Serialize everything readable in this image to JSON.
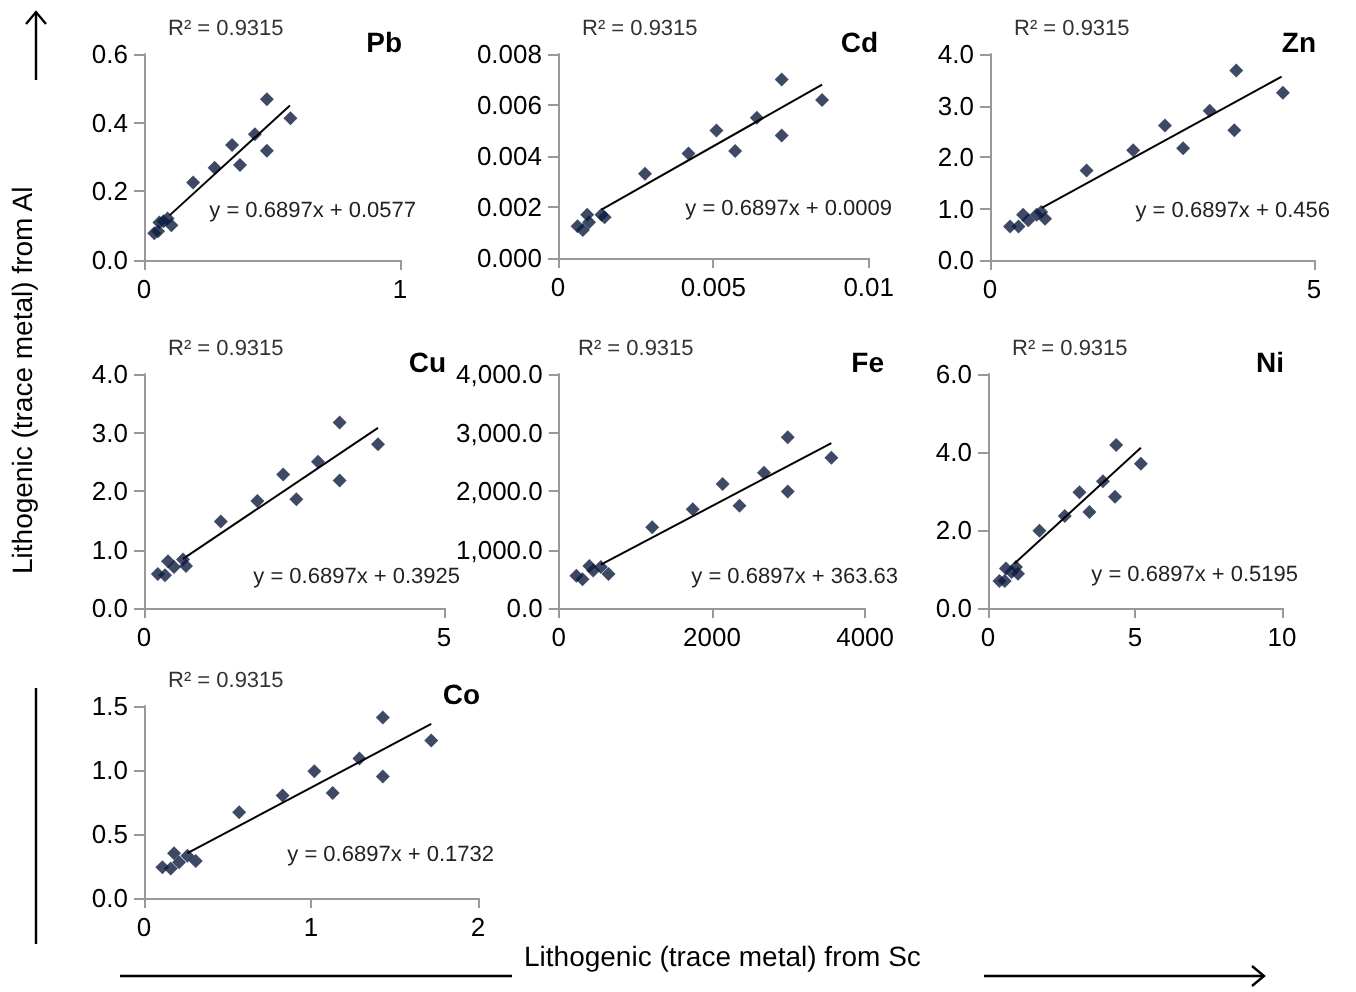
{
  "chart_data": [
    {
      "type": "scatter",
      "title": "Pb",
      "ylabel": "Lithogenic (trace metal) from Al",
      "xlim": [
        0,
        1
      ],
      "xticks": [
        0,
        1
      ],
      "ylim": [
        0,
        0.6
      ],
      "yticks": [
        {
          "value": 0,
          "label": "0.0"
        },
        0.2,
        0.4,
        0.6
      ],
      "annotations": [
        "R² = 0.9315",
        "y = 0.6897x + 0.0577"
      ],
      "series": [
        {
          "marker": "diamond",
          "color": "#0d1b3e",
          "x": [
            0.04,
            0.055,
            0.06,
            0.076,
            0.092,
            0.107,
            0.192,
            0.276,
            0.344,
            0.375,
            0.433,
            0.48,
            0.48,
            0.572
          ],
          "values": [
            0.078,
            0.084,
            0.109,
            0.113,
            0.121,
            0.101,
            0.226,
            0.269,
            0.335,
            0.277,
            0.366,
            0.468,
            0.318,
            0.413
          ]
        },
        {
          "type": "line",
          "marker": "none",
          "color": "#000000",
          "x": [
            0.1,
            0.57
          ],
          "values": [
            0.13,
            0.45
          ]
        }
      ]
    },
    {
      "type": "scatter",
      "title": "Cd",
      "xlim": [
        0,
        0.01
      ],
      "xticks": [
        0,
        0.005,
        0.01
      ],
      "ylim": [
        0,
        0.008
      ],
      "yticks": [
        {
          "value": 0,
          "label": "0.000"
        },
        {
          "value": 0.002,
          "label": "0.002"
        },
        {
          "value": 0.004,
          "label": "0.004"
        },
        {
          "value": 0.006,
          "label": "0.006"
        },
        {
          "value": 0.008,
          "label": "0.008"
        }
      ],
      "annotations": [
        "R² = 0.9315",
        "y = 0.6897x + 0.0009"
      ],
      "series": [
        {
          "marker": "diamond",
          "color": "#0d1b3e",
          "x": [
            0.00063,
            0.0008,
            0.00094,
            0.001,
            0.0014,
            0.0015,
            0.0028,
            0.0042,
            0.0051,
            0.0057,
            0.0064,
            0.0072,
            0.0072,
            0.0085
          ],
          "values": [
            0.00125,
            0.0011,
            0.0017,
            0.0014,
            0.0017,
            0.0016,
            0.0033,
            0.0041,
            0.005,
            0.0042,
            0.0055,
            0.007,
            0.0048,
            0.0062
          ]
        },
        {
          "type": "line",
          "marker": "none",
          "color": "#000000",
          "x": [
            0.0014,
            0.0085
          ],
          "values": [
            0.0019,
            0.0068
          ]
        }
      ]
    },
    {
      "type": "scatter",
      "title": "Zn",
      "xlim": [
        0,
        5
      ],
      "xticks": [
        0,
        5
      ],
      "ylim": [
        0,
        4
      ],
      "yticks": [
        {
          "value": 0,
          "label": "0.0"
        },
        {
          "value": 1,
          "label": "1.0"
        },
        {
          "value": 2,
          "label": "2.0"
        },
        {
          "value": 3,
          "label": "3.0"
        },
        {
          "value": 4,
          "label": "4.0"
        }
      ],
      "annotations": [
        "R² = 0.9315",
        "y = 0.6897x + 0.456"
      ],
      "series": [
        {
          "marker": "diamond",
          "color": "#0d1b3e",
          "x": [
            0.31,
            0.44,
            0.51,
            0.59,
            0.72,
            0.79,
            0.85,
            1.49,
            2.21,
            2.7,
            2.98,
            3.39,
            3.8,
            3.77,
            4.52
          ],
          "values": [
            0.65,
            0.65,
            0.88,
            0.77,
            0.88,
            0.93,
            0.8,
            1.74,
            2.13,
            2.61,
            2.17,
            2.9,
            3.68,
            2.52,
            3.25
          ]
        },
        {
          "type": "line",
          "marker": "none",
          "color": "#000000",
          "x": [
            0.8,
            4.5
          ],
          "values": [
            1.01,
            3.56
          ]
        }
      ]
    },
    {
      "type": "scatter",
      "title": "Cu",
      "xlim": [
        0,
        5
      ],
      "xticks": [
        0,
        5
      ],
      "ylim": [
        0,
        4
      ],
      "yticks": [
        {
          "value": 0,
          "label": "0.0"
        },
        {
          "value": 1,
          "label": "1.0"
        },
        {
          "value": 2,
          "label": "2.0"
        },
        {
          "value": 3,
          "label": "3.0"
        },
        {
          "value": 4,
          "label": "4.0"
        }
      ],
      "annotations": [
        "R² = 0.9315",
        "y = 0.6897x + 0.3925"
      ],
      "series": [
        {
          "marker": "diamond",
          "color": "#0d1b3e",
          "x": [
            0.23,
            0.35,
            0.4,
            0.5,
            0.65,
            0.7,
            1.28,
            1.89,
            2.32,
            2.54,
            2.9,
            3.26,
            3.26,
            3.9
          ],
          "values": [
            0.58,
            0.56,
            0.8,
            0.7,
            0.83,
            0.72,
            1.48,
            1.83,
            2.28,
            1.86,
            2.5,
            3.17,
            2.18,
            2.8
          ]
        },
        {
          "type": "line",
          "marker": "none",
          "color": "#000000",
          "x": [
            0.65,
            3.9
          ],
          "values": [
            0.84,
            3.08
          ]
        }
      ]
    },
    {
      "type": "scatter",
      "title": "Fe",
      "xlim": [
        0,
        4000
      ],
      "xticks": [
        0,
        2000,
        4000
      ],
      "ylim": [
        0,
        4000
      ],
      "yticks": [
        {
          "value": 0,
          "label": "0.0"
        },
        {
          "value": 1000,
          "label": "1,000.0"
        },
        {
          "value": 2000,
          "label": "2,000.0"
        },
        {
          "value": 3000,
          "label": "3,000.0"
        },
        {
          "value": 4000,
          "label": "4,000.0"
        }
      ],
      "annotations": [
        "R² = 0.9315",
        "y = 0.6897x + 363.63"
      ],
      "series": [
        {
          "marker": "diamond",
          "color": "#0d1b3e",
          "x": [
            230,
            310,
            400,
            450,
            550,
            650,
            1220,
            1750,
            2140,
            2360,
            2680,
            2990,
            2990,
            3560
          ],
          "values": [
            550,
            490,
            720,
            640,
            700,
            580,
            1380,
            1690,
            2120,
            1750,
            2310,
            2920,
            1990,
            2570
          ]
        },
        {
          "type": "line",
          "marker": "none",
          "color": "#000000",
          "x": [
            550,
            3560
          ],
          "values": [
            740,
            2820
          ]
        }
      ]
    },
    {
      "type": "scatter",
      "title": "Ni",
      "xlim": [
        0,
        10
      ],
      "xticks": [
        0,
        5,
        10
      ],
      "ylim": [
        0,
        6
      ],
      "yticks": [
        {
          "value": 0,
          "label": "0.0"
        },
        {
          "value": 2,
          "label": "2.0"
        },
        {
          "value": 4,
          "label": "4.0"
        },
        {
          "value": 6,
          "label": "6.0"
        }
      ],
      "annotations": [
        "R² = 0.9315",
        "y = 0.6897x + 0.5195"
      ],
      "series": [
        {
          "marker": "diamond",
          "color": "#0d1b3e",
          "x": [
            0.39,
            0.57,
            0.61,
            0.8,
            0.95,
            1.02,
            1.75,
            2.61,
            3.11,
            3.45,
            3.91,
            4.36,
            4.32,
            5.2
          ],
          "values": [
            0.69,
            0.69,
            1.01,
            0.92,
            1.05,
            0.88,
            1.98,
            2.36,
            2.97,
            2.46,
            3.25,
            4.18,
            2.85,
            3.7
          ]
        },
        {
          "type": "line",
          "marker": "none",
          "color": "#000000",
          "x": [
            0.9,
            5.2
          ],
          "values": [
            1.14,
            4.11
          ]
        }
      ]
    },
    {
      "type": "scatter",
      "title": "Co",
      "xlabel": "Lithogenic (trace metal) from Sc",
      "xlim": [
        0,
        2
      ],
      "xticks": [
        0,
        1,
        2
      ],
      "ylim": [
        0,
        1.5
      ],
      "yticks": [
        {
          "value": 0,
          "label": "0.0"
        },
        0.5,
        {
          "value": 1,
          "label": "1.0"
        },
        1.5
      ],
      "annotations": [
        "R² = 0.9315",
        "y = 0.6897x + 0.1732"
      ],
      "series": [
        {
          "marker": "diamond",
          "color": "#0d1b3e",
          "x": [
            0.11,
            0.16,
            0.18,
            0.21,
            0.26,
            0.31,
            0.57,
            0.83,
            1.02,
            1.13,
            1.29,
            1.43,
            1.43,
            1.72
          ],
          "values": [
            0.24,
            0.23,
            0.35,
            0.28,
            0.33,
            0.29,
            0.67,
            0.8,
            0.99,
            0.82,
            1.09,
            1.41,
            0.95,
            1.23
          ]
        },
        {
          "type": "line",
          "marker": "none",
          "color": "#000000",
          "x": [
            0.26,
            1.72
          ],
          "values": [
            0.35,
            1.36
          ]
        }
      ]
    }
  ]
}
